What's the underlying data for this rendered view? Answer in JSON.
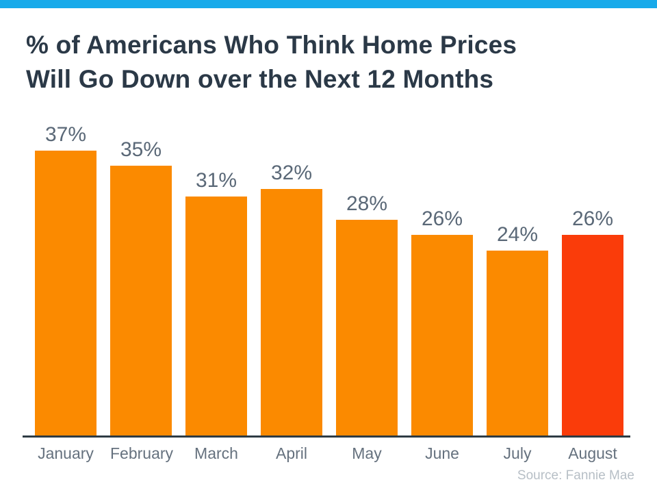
{
  "page": {
    "accent_strip_color": "#18aaea",
    "background_color": "#ffffff"
  },
  "title": {
    "text": "% of Americans Who Think Home Prices Will Go Down over the Next 12 Months",
    "lines": [
      "% of Americans Who Think Home Prices",
      "Will Go Down over the Next 12 Months"
    ],
    "color": "#2b3947"
  },
  "source": {
    "text": "Source: Fannie Mae",
    "color": "#b7bfc6"
  },
  "chart_data": {
    "type": "bar",
    "title": "% of Americans Who Think Home Prices Will Go Down over the Next 12 Months",
    "categories": [
      "January",
      "February",
      "March",
      "April",
      "May",
      "June",
      "July",
      "August"
    ],
    "values": [
      37,
      35,
      31,
      32,
      28,
      26,
      24,
      26
    ],
    "value_labels": [
      "37%",
      "35%",
      "31%",
      "32%",
      "28%",
      "26%",
      "24%",
      "26%"
    ],
    "xlabel": "",
    "ylabel": "",
    "ylim": [
      0,
      40
    ],
    "grid": false,
    "legend": false,
    "bar_color": "#fb8a00",
    "highlight_bar_color": "#fa3c0a",
    "highlight_index": 7,
    "axis_line_color": "#2e3b44",
    "value_label_color": "#5a6877",
    "category_label_color": "#65717e"
  }
}
